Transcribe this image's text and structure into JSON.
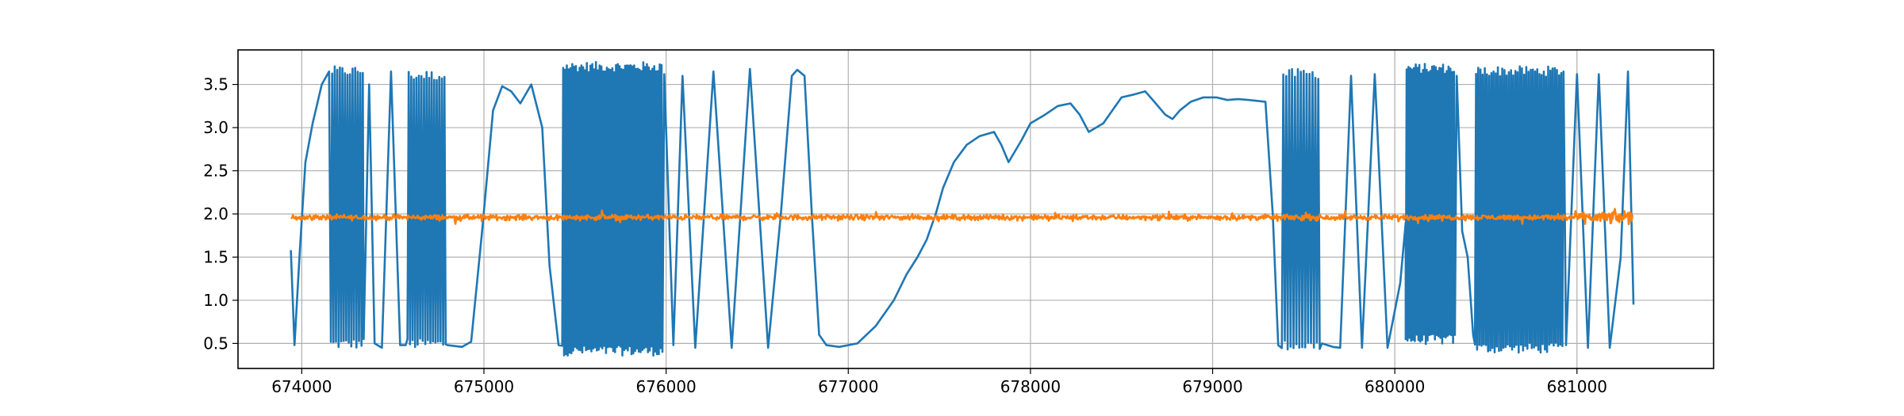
{
  "chart_data": {
    "type": "line",
    "title": "",
    "xlabel": "",
    "ylabel": "",
    "xlim": [
      673650,
      681750
    ],
    "ylim": [
      0.21,
      3.9
    ],
    "grid": true,
    "legend": "none",
    "x_ticks": [
      674000,
      675000,
      676000,
      677000,
      678000,
      679000,
      680000,
      681000
    ],
    "x_tick_labels": [
      "674000",
      "675000",
      "676000",
      "677000",
      "678000",
      "679000",
      "680000",
      "681000"
    ],
    "y_ticks": [
      0.5,
      1.0,
      1.5,
      2.0,
      2.5,
      3.0,
      3.5
    ],
    "y_tick_labels": [
      "0.5",
      "1.0",
      "1.5",
      "2.0",
      "2.5",
      "3.0",
      "3.5"
    ],
    "series": [
      {
        "color": "#1f77b4",
        "segments": [
          {
            "kind": "pts",
            "pts": [
              [
                673940,
                1.58
              ],
              [
                673960,
                0.48
              ],
              [
                673990,
                1.6
              ],
              [
                674020,
                2.6
              ],
              [
                674060,
                3.05
              ],
              [
                674110,
                3.5
              ],
              [
                674150,
                3.65
              ]
            ]
          },
          {
            "kind": "osc",
            "x0": 674160,
            "x1": 674340,
            "period": 14,
            "lo": 0.5,
            "hi": 3.65
          },
          {
            "kind": "pts",
            "pts": [
              [
                674340,
                0.55
              ],
              [
                674370,
                3.5
              ],
              [
                674400,
                0.5
              ],
              [
                674440,
                0.45
              ],
              [
                674490,
                3.65
              ],
              [
                674540,
                0.48
              ],
              [
                674570,
                0.48
              ]
            ]
          },
          {
            "kind": "osc",
            "x0": 674580,
            "x1": 674790,
            "period": 14,
            "lo": 0.5,
            "hi": 3.6
          },
          {
            "kind": "pts",
            "pts": [
              [
                674800,
                0.48
              ],
              [
                674880,
                0.46
              ],
              [
                674930,
                0.52
              ],
              [
                674990,
                1.8
              ],
              [
                675050,
                3.2
              ],
              [
                675100,
                3.48
              ],
              [
                675150,
                3.42
              ],
              [
                675200,
                3.28
              ],
              [
                675260,
                3.5
              ],
              [
                675320,
                3.0
              ],
              [
                675360,
                1.4
              ],
              [
                675410,
                0.48
              ]
            ]
          },
          {
            "kind": "osc",
            "x0": 675430,
            "x1": 675980,
            "period": 10,
            "lo": 0.42,
            "hi": 3.7
          },
          {
            "kind": "pts",
            "pts": [
              [
                675990,
                3.62
              ],
              [
                676040,
                0.48
              ],
              [
                676090,
                3.6
              ],
              [
                676160,
                0.45
              ],
              [
                676260,
                3.65
              ],
              [
                676360,
                0.45
              ],
              [
                676460,
                3.68
              ],
              [
                676560,
                0.45
              ],
              [
                676630,
                2.0
              ],
              [
                676690,
                3.6
              ],
              [
                676720,
                3.67
              ],
              [
                676760,
                3.6
              ],
              [
                676800,
                2.0
              ],
              [
                676840,
                0.6
              ],
              [
                676880,
                0.48
              ],
              [
                676950,
                0.46
              ],
              [
                677050,
                0.5
              ],
              [
                677150,
                0.7
              ],
              [
                677250,
                1.0
              ],
              [
                677320,
                1.3
              ],
              [
                677380,
                1.5
              ],
              [
                677430,
                1.7
              ],
              [
                677480,
                2.0
              ],
              [
                677520,
                2.3
              ],
              [
                677580,
                2.6
              ],
              [
                677650,
                2.8
              ],
              [
                677720,
                2.9
              ],
              [
                677800,
                2.95
              ],
              [
                677840,
                2.8
              ],
              [
                677880,
                2.6
              ],
              [
                677950,
                2.85
              ],
              [
                678000,
                3.05
              ],
              [
                678080,
                3.15
              ],
              [
                678150,
                3.25
              ],
              [
                678220,
                3.28
              ],
              [
                678270,
                3.15
              ],
              [
                678320,
                2.95
              ],
              [
                678400,
                3.05
              ],
              [
                678450,
                3.2
              ],
              [
                678500,
                3.35
              ],
              [
                678560,
                3.38
              ],
              [
                678630,
                3.42
              ],
              [
                678680,
                3.3
              ],
              [
                678740,
                3.15
              ],
              [
                678780,
                3.1
              ],
              [
                678820,
                3.2
              ],
              [
                678880,
                3.3
              ],
              [
                678950,
                3.35
              ],
              [
                679020,
                3.35
              ],
              [
                679080,
                3.32
              ],
              [
                679140,
                3.33
              ],
              [
                679200,
                3.32
              ],
              [
                679290,
                3.3
              ],
              [
                679330,
                2.0
              ],
              [
                679360,
                0.48
              ]
            ]
          },
          {
            "kind": "osc",
            "x0": 679380,
            "x1": 679590,
            "period": 16,
            "lo": 0.48,
            "hi": 3.62
          },
          {
            "kind": "pts",
            "pts": [
              [
                679600,
                0.5
              ],
              [
                679660,
                0.46
              ],
              [
                679700,
                0.45
              ],
              [
                679760,
                3.6
              ],
              [
                679820,
                0.45
              ],
              [
                679890,
                3.62
              ],
              [
                679960,
                0.45
              ],
              [
                680030,
                1.2
              ],
              [
                680060,
                1.9
              ]
            ]
          },
          {
            "kind": "osc",
            "x0": 680060,
            "x1": 680330,
            "period": 10,
            "lo": 0.55,
            "hi": 3.68
          },
          {
            "kind": "pts",
            "pts": [
              [
                680340,
                3.6
              ],
              [
                680370,
                1.8
              ],
              [
                680400,
                1.5
              ],
              [
                680430,
                0.6
              ]
            ]
          },
          {
            "kind": "osc",
            "x0": 680440,
            "x1": 680930,
            "period": 12,
            "lo": 0.45,
            "hi": 3.65
          },
          {
            "kind": "pts",
            "pts": [
              [
                680940,
                0.48
              ],
              [
                681000,
                3.62
              ],
              [
                681060,
                0.45
              ],
              [
                681120,
                3.62
              ],
              [
                681180,
                0.45
              ],
              [
                681240,
                1.5
              ],
              [
                681280,
                3.65
              ],
              [
                681310,
                0.95
              ]
            ]
          }
        ]
      },
      {
        "color": "#ff7f0e",
        "segments": [
          {
            "kind": "noise",
            "x0": 673940,
            "x1": 681310,
            "step": 4,
            "base": 1.96,
            "amp": 0.045,
            "amp_end": 0.13,
            "taper_from": 680800
          }
        ]
      }
    ]
  }
}
